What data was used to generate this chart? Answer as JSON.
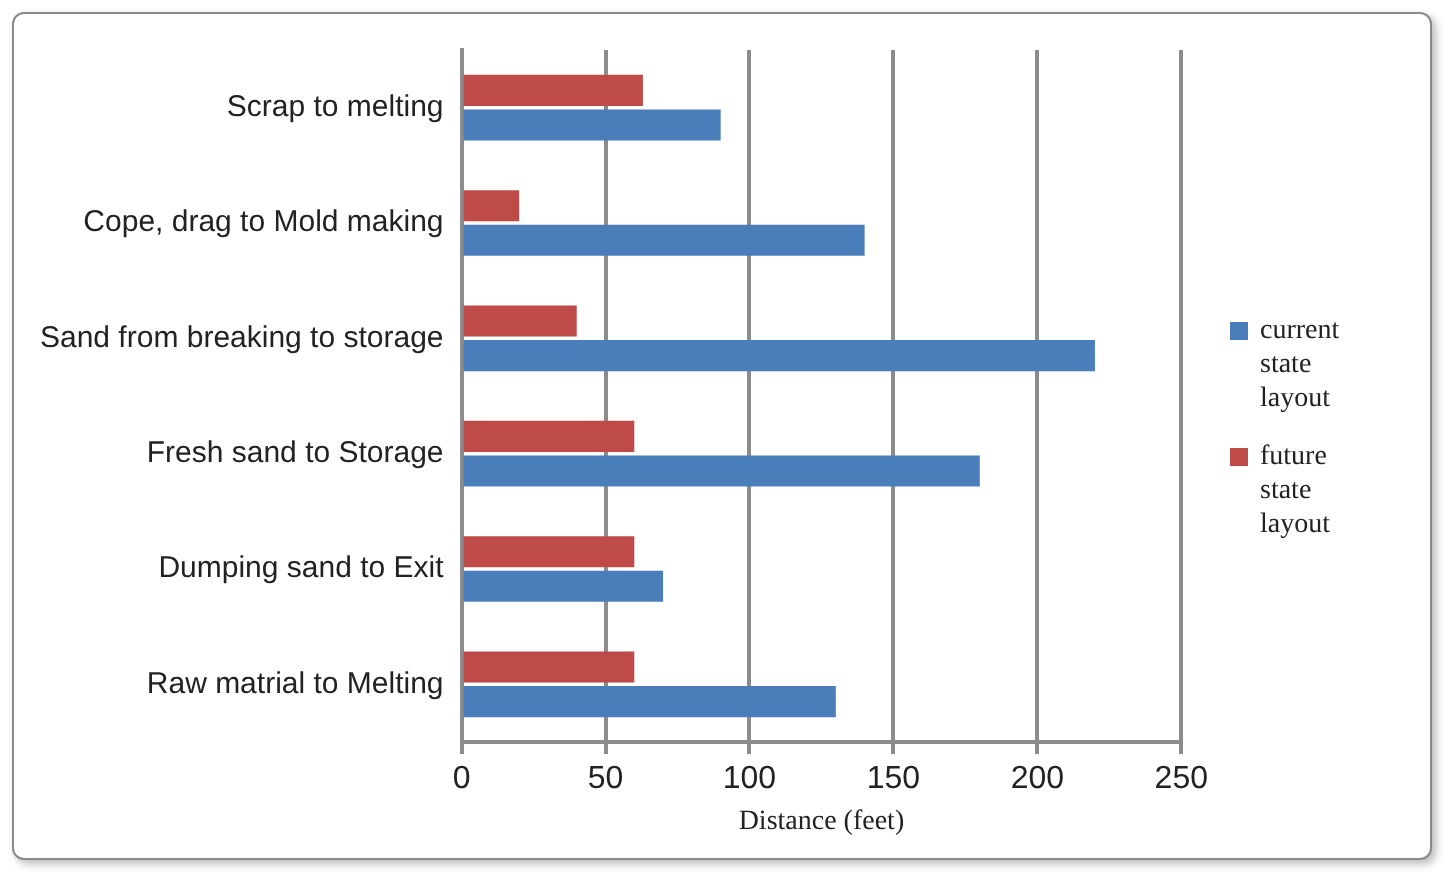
{
  "chart_data": {
    "type": "bar",
    "orientation": "horizontal",
    "xlabel": "Distance (feet)",
    "categories": [
      "Scrap to melting",
      "Cope, drag to Mold making",
      "Sand from breaking to storage",
      "Fresh sand to Storage",
      "Dumping sand to Exit",
      "Raw matrial to Melting"
    ],
    "series": [
      {
        "name": "current state layout",
        "color": "#4a7ebb",
        "values": [
          90,
          140,
          220,
          180,
          70,
          130
        ]
      },
      {
        "name": "future state layout",
        "color": "#be4b48",
        "values": [
          63,
          20,
          40,
          60,
          60,
          60
        ]
      }
    ],
    "xlim": [
      0,
      250
    ],
    "xticks": [
      0,
      50,
      100,
      150,
      200,
      250
    ],
    "grid": "x",
    "legend": "right"
  }
}
